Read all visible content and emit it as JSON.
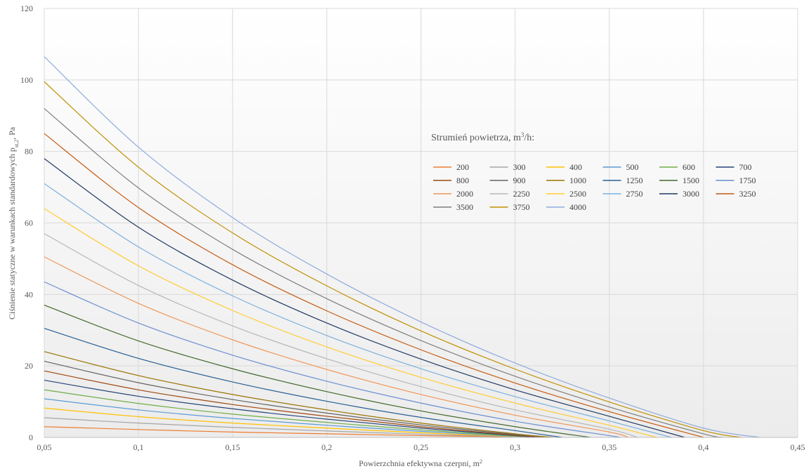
{
  "chart_data": {
    "type": "line",
    "title": "",
    "xlabel": "Powierzchnia efektywna czerpni, m",
    "xlabel_sup": "2",
    "ylabel": "Ciśnienie statyczne w warunkach standardowych p",
    "ylabel_sub": "st,2",
    "ylabel_suffix": ", Pa",
    "xlim": [
      0.05,
      0.45
    ],
    "ylim": [
      0,
      120
    ],
    "x_ticks": [
      "0,05",
      "0,1",
      "0,15",
      "0,2",
      "0,25",
      "0,3",
      "0,35",
      "0,4",
      "0,45"
    ],
    "x_tick_values": [
      0.05,
      0.1,
      0.15,
      0.2,
      0.25,
      0.3,
      0.35,
      0.4,
      0.45
    ],
    "y_ticks": [
      "0",
      "20",
      "40",
      "60",
      "80",
      "100",
      "120"
    ],
    "y_tick_values": [
      0,
      20,
      40,
      60,
      80,
      100,
      120
    ],
    "grid": true,
    "legend_title": "Strumień powietrza,  m",
    "legend_title_sup": "3",
    "legend_title_suffix": "/h:",
    "legend_placement": "upper-right, inside plot",
    "series": [
      {
        "name": "200",
        "color": "#ED7D31",
        "values": [
          [
            0.05,
            3.0
          ],
          [
            0.1,
            2.2
          ],
          [
            0.15,
            1.5
          ],
          [
            0.2,
            1.0
          ],
          [
            0.25,
            0.5
          ],
          [
            0.3,
            0.15
          ],
          [
            0.31,
            0
          ]
        ]
      },
      {
        "name": "300",
        "color": "#A5A5A5",
        "values": [
          [
            0.05,
            5.5
          ],
          [
            0.1,
            4.0
          ],
          [
            0.15,
            2.8
          ],
          [
            0.2,
            1.8
          ],
          [
            0.25,
            0.9
          ],
          [
            0.3,
            0.2
          ],
          [
            0.31,
            0
          ]
        ]
      },
      {
        "name": "400",
        "color": "#FFC000",
        "values": [
          [
            0.05,
            8.2
          ],
          [
            0.1,
            5.8
          ],
          [
            0.15,
            4.0
          ],
          [
            0.2,
            2.6
          ],
          [
            0.25,
            1.3
          ],
          [
            0.3,
            0.3
          ],
          [
            0.31,
            0
          ]
        ]
      },
      {
        "name": "500",
        "color": "#5B9BD5",
        "values": [
          [
            0.05,
            10.8
          ],
          [
            0.1,
            7.7
          ],
          [
            0.15,
            5.3
          ],
          [
            0.2,
            3.4
          ],
          [
            0.25,
            1.7
          ],
          [
            0.3,
            0.35
          ],
          [
            0.31,
            0
          ]
        ]
      },
      {
        "name": "600",
        "color": "#70AD47",
        "values": [
          [
            0.05,
            13.3
          ],
          [
            0.1,
            9.5
          ],
          [
            0.15,
            6.5
          ],
          [
            0.2,
            4.2
          ],
          [
            0.25,
            2.1
          ],
          [
            0.3,
            0.4
          ],
          [
            0.312,
            0
          ]
        ]
      },
      {
        "name": "700",
        "color": "#264478",
        "values": [
          [
            0.05,
            16.0
          ],
          [
            0.1,
            11.5
          ],
          [
            0.15,
            8.0
          ],
          [
            0.2,
            5.1
          ],
          [
            0.25,
            2.6
          ],
          [
            0.3,
            0.5
          ],
          [
            0.313,
            0
          ]
        ]
      },
      {
        "name": "800",
        "color": "#9E480E",
        "values": [
          [
            0.05,
            18.6
          ],
          [
            0.1,
            13.3
          ],
          [
            0.15,
            9.2
          ],
          [
            0.2,
            5.9
          ],
          [
            0.25,
            3.0
          ],
          [
            0.3,
            0.6
          ],
          [
            0.315,
            0
          ]
        ]
      },
      {
        "name": "900",
        "color": "#636363",
        "values": [
          [
            0.05,
            21.3
          ],
          [
            0.1,
            15.3
          ],
          [
            0.15,
            10.6
          ],
          [
            0.2,
            6.8
          ],
          [
            0.25,
            3.5
          ],
          [
            0.3,
            0.8
          ],
          [
            0.318,
            0
          ]
        ]
      },
      {
        "name": "1000",
        "color": "#997300",
        "values": [
          [
            0.05,
            24.0
          ],
          [
            0.1,
            17.3
          ],
          [
            0.15,
            12.0
          ],
          [
            0.2,
            7.7
          ],
          [
            0.25,
            4.0
          ],
          [
            0.3,
            1.0
          ],
          [
            0.32,
            0
          ]
        ]
      },
      {
        "name": "1250",
        "color": "#255E91",
        "values": [
          [
            0.05,
            30.5
          ],
          [
            0.1,
            22.1
          ],
          [
            0.15,
            15.5
          ],
          [
            0.2,
            10.1
          ],
          [
            0.25,
            5.6
          ],
          [
            0.3,
            1.9
          ],
          [
            0.325,
            0
          ]
        ]
      },
      {
        "name": "1500",
        "color": "#43682B",
        "values": [
          [
            0.05,
            37.0
          ],
          [
            0.1,
            27.0
          ],
          [
            0.15,
            19.2
          ],
          [
            0.2,
            12.8
          ],
          [
            0.25,
            7.4
          ],
          [
            0.3,
            3.0
          ],
          [
            0.34,
            0
          ]
        ]
      },
      {
        "name": "1750",
        "color": "#698ED0",
        "values": [
          [
            0.05,
            43.5
          ],
          [
            0.1,
            32.0
          ],
          [
            0.15,
            23.0
          ],
          [
            0.2,
            15.7
          ],
          [
            0.25,
            9.6
          ],
          [
            0.3,
            4.5
          ],
          [
            0.35,
            0.5
          ],
          [
            0.355,
            0
          ]
        ]
      },
      {
        "name": "2000",
        "color": "#F1975A",
        "values": [
          [
            0.05,
            50.5
          ],
          [
            0.1,
            37.5
          ],
          [
            0.15,
            27.3
          ],
          [
            0.2,
            19.0
          ],
          [
            0.25,
            12.0
          ],
          [
            0.3,
            6.2
          ],
          [
            0.35,
            1.5
          ],
          [
            0.36,
            0
          ]
        ]
      },
      {
        "name": "2250",
        "color": "#B7B7B7",
        "values": [
          [
            0.05,
            57.0
          ],
          [
            0.1,
            42.5
          ],
          [
            0.15,
            31.2
          ],
          [
            0.2,
            22.0
          ],
          [
            0.25,
            14.2
          ],
          [
            0.3,
            7.7
          ],
          [
            0.35,
            2.3
          ],
          [
            0.365,
            0
          ]
        ]
      },
      {
        "name": "2500",
        "color": "#FFCD33",
        "values": [
          [
            0.05,
            64.0
          ],
          [
            0.1,
            48.0
          ],
          [
            0.15,
            35.5
          ],
          [
            0.2,
            25.3
          ],
          [
            0.25,
            16.8
          ],
          [
            0.3,
            9.6
          ],
          [
            0.35,
            3.4
          ],
          [
            0.375,
            0
          ]
        ]
      },
      {
        "name": "2750",
        "color": "#7CAFDD",
        "values": [
          [
            0.05,
            71.0
          ],
          [
            0.1,
            53.3
          ],
          [
            0.15,
            39.6
          ],
          [
            0.2,
            28.5
          ],
          [
            0.25,
            19.2
          ],
          [
            0.3,
            11.4
          ],
          [
            0.35,
            4.6
          ],
          [
            0.383,
            0
          ]
        ]
      },
      {
        "name": "3000",
        "color": "#203864",
        "values": [
          [
            0.05,
            78.0
          ],
          [
            0.1,
            58.8
          ],
          [
            0.15,
            44.0
          ],
          [
            0.2,
            32.0
          ],
          [
            0.25,
            21.9
          ],
          [
            0.3,
            13.3
          ],
          [
            0.35,
            5.9
          ],
          [
            0.39,
            0
          ]
        ]
      },
      {
        "name": "3250",
        "color": "#C55A11",
        "values": [
          [
            0.05,
            85.0
          ],
          [
            0.1,
            64.3
          ],
          [
            0.15,
            48.3
          ],
          [
            0.2,
            35.4
          ],
          [
            0.25,
            24.5
          ],
          [
            0.3,
            15.2
          ],
          [
            0.35,
            7.2
          ],
          [
            0.4,
            0
          ]
        ]
      },
      {
        "name": "3500",
        "color": "#7F7F7F",
        "values": [
          [
            0.05,
            92.0
          ],
          [
            0.1,
            69.8
          ],
          [
            0.15,
            52.6
          ],
          [
            0.2,
            38.8
          ],
          [
            0.25,
            27.1
          ],
          [
            0.3,
            17.1
          ],
          [
            0.35,
            8.5
          ],
          [
            0.4,
            1.0
          ],
          [
            0.41,
            0
          ]
        ]
      },
      {
        "name": "3750",
        "color": "#BF9000",
        "values": [
          [
            0.05,
            99.5
          ],
          [
            0.1,
            75.6
          ],
          [
            0.15,
            57.2
          ],
          [
            0.2,
            42.4
          ],
          [
            0.25,
            29.8
          ],
          [
            0.3,
            19.1
          ],
          [
            0.35,
            9.9
          ],
          [
            0.4,
            1.9
          ],
          [
            0.42,
            0
          ]
        ]
      },
      {
        "name": "4000",
        "color": "#8FAADC",
        "values": [
          [
            0.05,
            106.5
          ],
          [
            0.1,
            81.2
          ],
          [
            0.15,
            61.5
          ],
          [
            0.2,
            45.7
          ],
          [
            0.25,
            32.3
          ],
          [
            0.3,
            20.8
          ],
          [
            0.35,
            11.0
          ],
          [
            0.4,
            2.6
          ],
          [
            0.43,
            0
          ]
        ]
      }
    ]
  }
}
